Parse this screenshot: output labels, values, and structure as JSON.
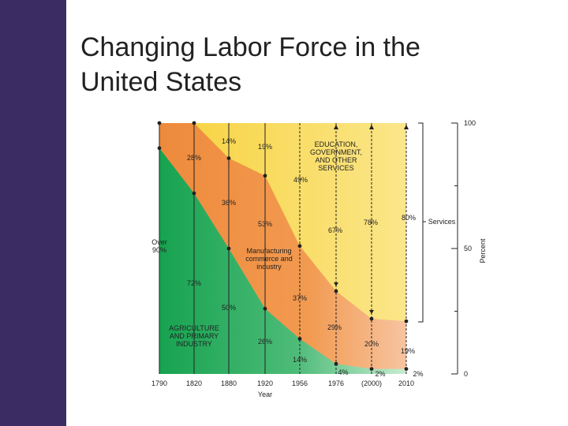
{
  "slide": {
    "title_line1": "Changing Labor Force in the",
    "title_line2": "United States"
  },
  "colors": {
    "sidebar": "#3b2d63",
    "agriculture": "#22a85a",
    "manufacturing": "#f1974a",
    "services": "#f8d64a"
  },
  "chart_data": {
    "type": "area",
    "stacking": "percent",
    "x": [
      "1790",
      "1820",
      "1880",
      "1920",
      "1956",
      "1976",
      "(2000)",
      "2010"
    ],
    "xlabel": "Year",
    "ylabel": "Percent",
    "ylim": [
      0,
      100
    ],
    "y_ticks": [
      "0",
      "50",
      "100"
    ],
    "series": [
      {
        "name": "AGRICULTURE AND PRIMARY INDUSTRY",
        "values": [
          90,
          72,
          50,
          26,
          14,
          4,
          2,
          2
        ],
        "labels": [
          "Over 90%",
          "72%",
          "50%",
          "26%",
          "14%",
          "4%",
          "2%",
          "2%"
        ]
      },
      {
        "name": "Manufacturing commerce and industry",
        "values": [
          10,
          28,
          36,
          53,
          37,
          29,
          20,
          19
        ],
        "labels": [
          "",
          "28%",
          "36%",
          "53%",
          "37%",
          "29%",
          "20%",
          "19%"
        ]
      },
      {
        "name": "EDUCATION, GOVERNMENT, AND OTHER SERVICES",
        "values": [
          0,
          0,
          14,
          19,
          49,
          67,
          78,
          80
        ],
        "labels": [
          "",
          "",
          "14%",
          "19%",
          "49%",
          "67%",
          "78%",
          "80%"
        ]
      }
    ],
    "annotations": {
      "services_bracket": "Services"
    }
  }
}
